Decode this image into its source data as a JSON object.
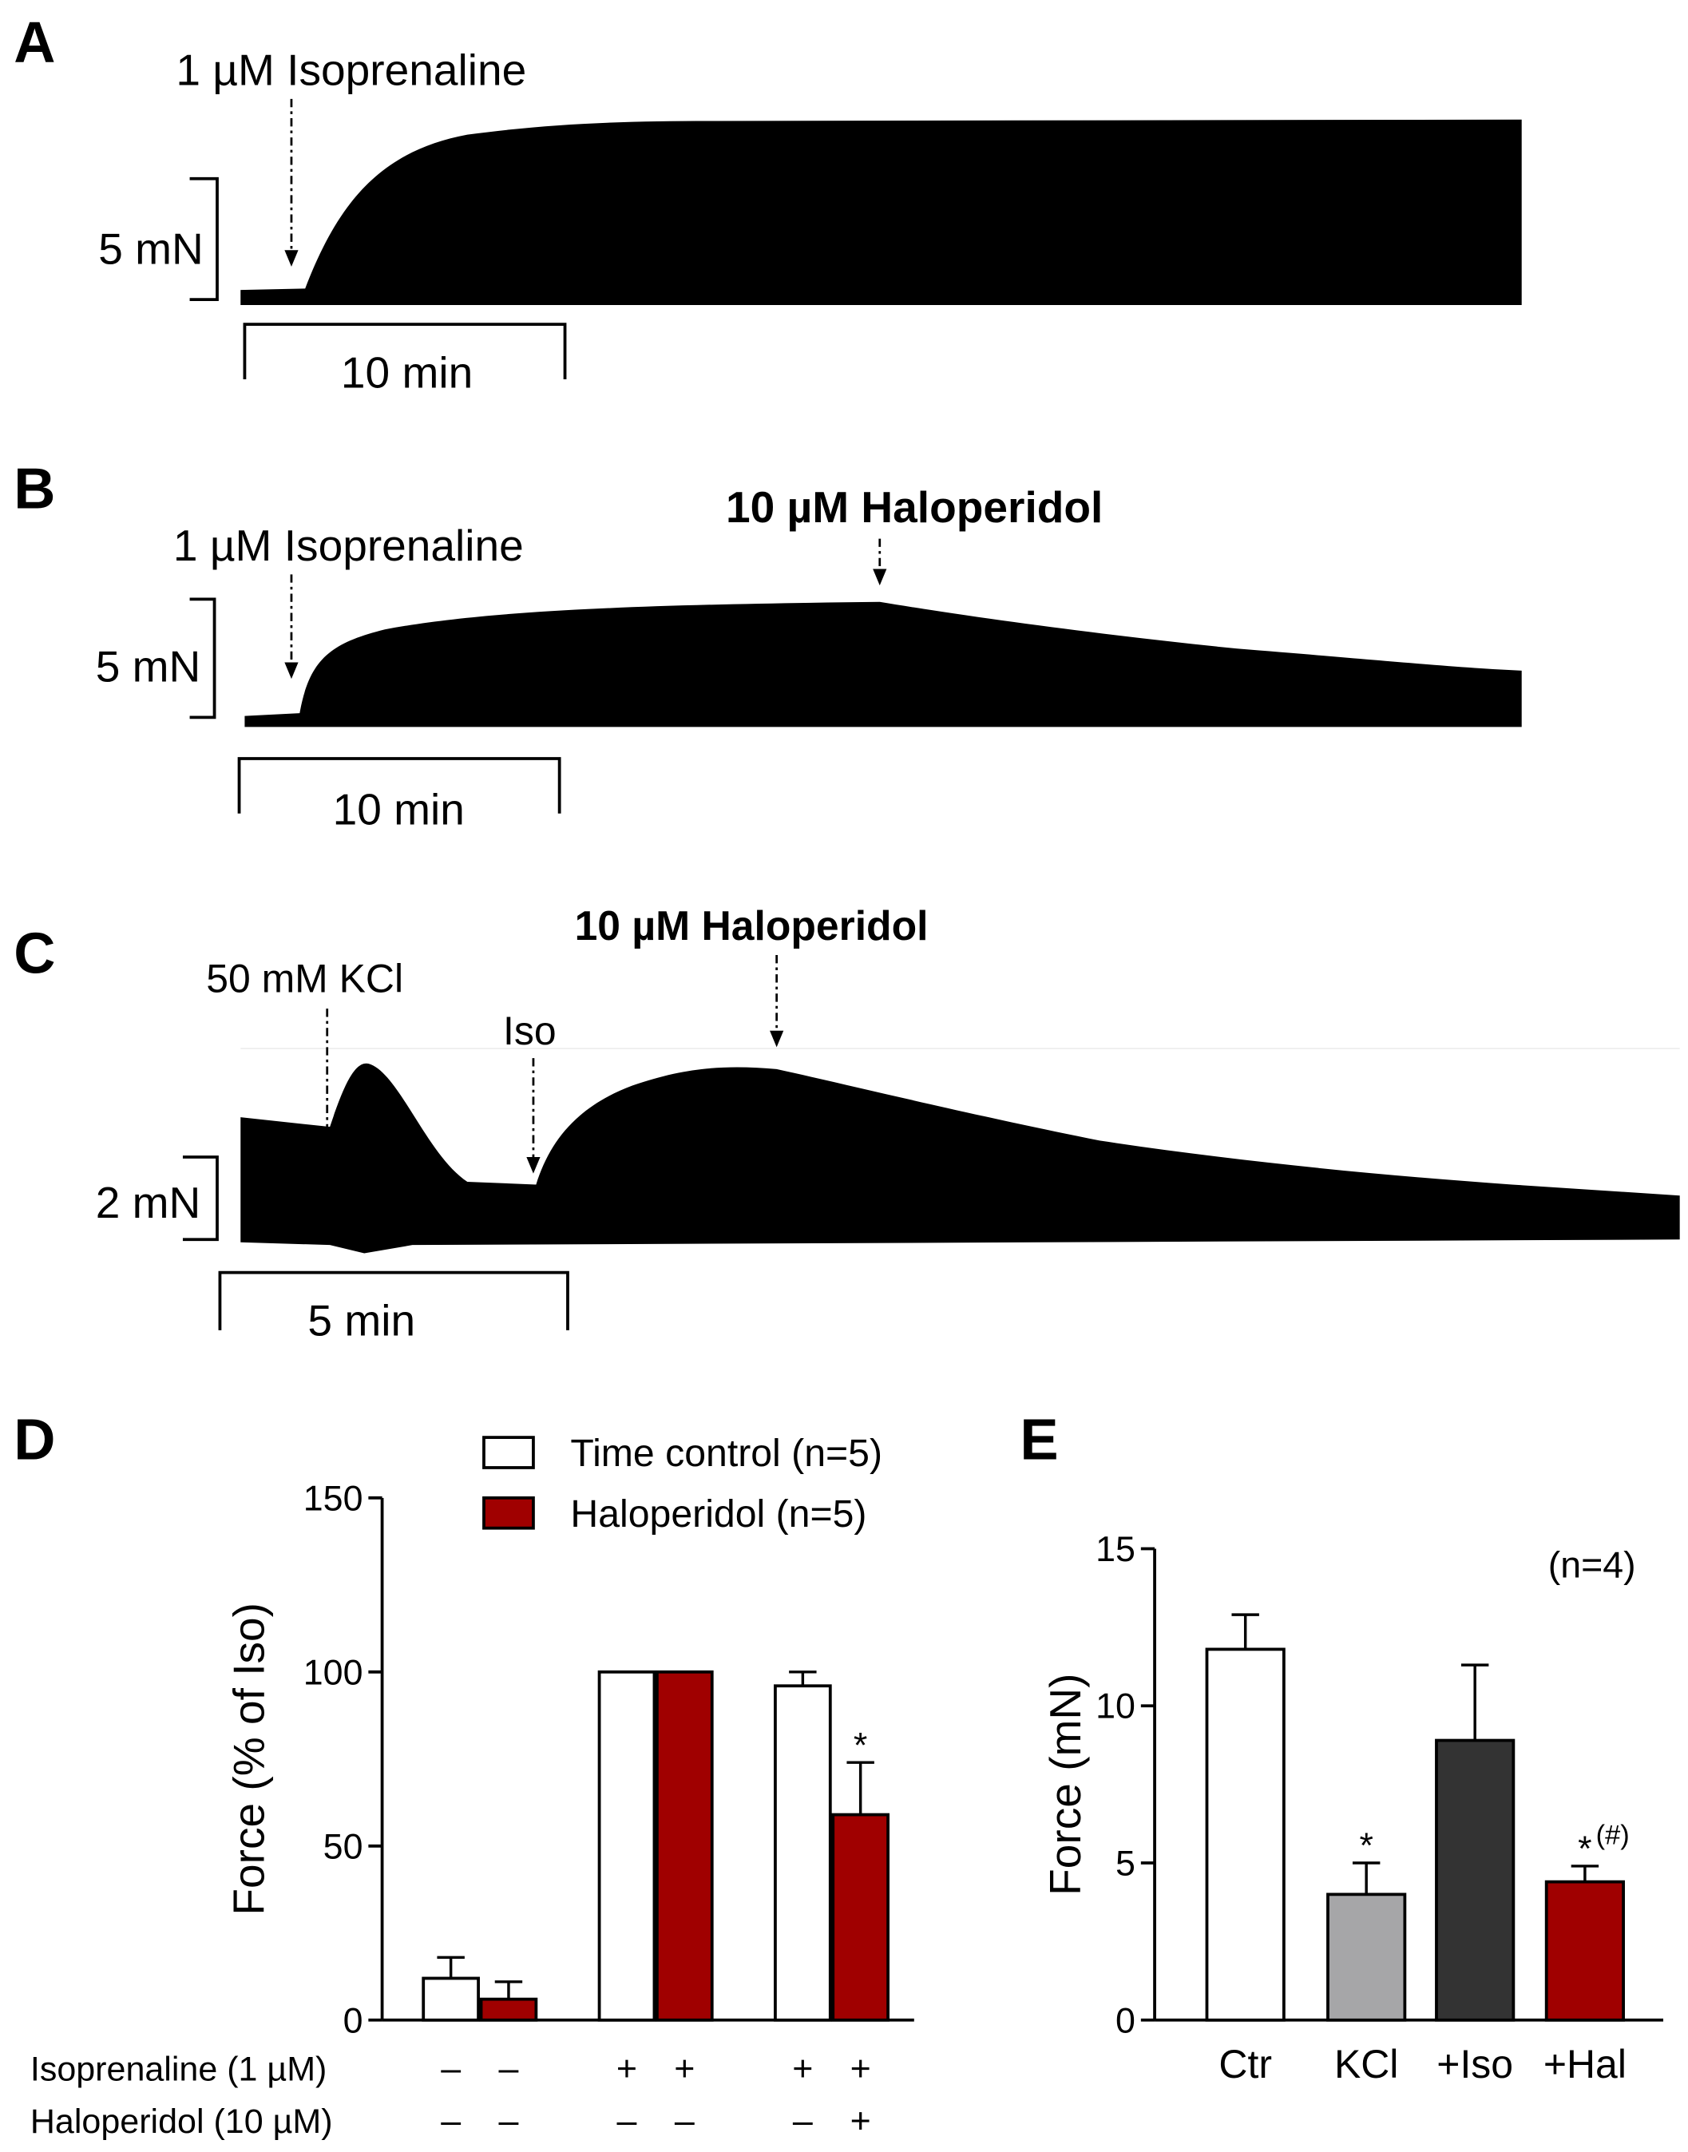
{
  "traces": [
    {
      "label": "A",
      "annotations": [
        "1 µM Isoprenaline"
      ],
      "scale_force": "5 mN",
      "scale_time": "10 min"
    },
    {
      "label": "B",
      "annotations": [
        "1 µM Isoprenaline",
        "10 µM Haloperidol"
      ],
      "scale_force": "5 mN",
      "scale_time": "10 min"
    },
    {
      "label": "C",
      "annotations": [
        "50 mM KCl",
        "Iso",
        "10 µM Haloperidol"
      ],
      "scale_force": "2 mN",
      "scale_time": "5 min"
    }
  ],
  "chart_data": [
    {
      "type": "bar",
      "label": "D",
      "ylabel": "Force (% of Iso)",
      "ylim": [
        0,
        150
      ],
      "yticks": [
        0,
        50,
        100,
        150
      ],
      "series": [
        {
          "name": "Time control (n=5)",
          "color": "#ffffff",
          "values": [
            12,
            100,
            96
          ],
          "errors": [
            6,
            0,
            4
          ],
          "annotations": [
            null,
            null,
            null
          ]
        },
        {
          "name": "Haloperidol (n=5)",
          "color": "#a00000",
          "values": [
            6,
            100,
            59
          ],
          "errors": [
            5,
            0,
            15
          ],
          "annotations": [
            null,
            null,
            "*"
          ]
        }
      ],
      "conditions": [
        {
          "name": "Isoprenaline (1 µM)",
          "signs": [
            "–",
            "–",
            "+",
            "+",
            "+",
            "+"
          ]
        },
        {
          "name": "Haloperidol (10 µM)",
          "signs": [
            "–",
            "–",
            "–",
            "–",
            "–",
            "+"
          ]
        }
      ]
    },
    {
      "type": "bar",
      "label": "E",
      "ylabel": "Force (mN)",
      "ylim": [
        0,
        15
      ],
      "yticks": [
        0,
        5,
        10,
        15
      ],
      "categories": [
        "Ctr",
        "KCl",
        "+Iso",
        "+Hal"
      ],
      "values": [
        11.8,
        4,
        8.9,
        4.4
      ],
      "errors": [
        1.1,
        1,
        2.4,
        0.5
      ],
      "colors": [
        "#ffffff",
        "#a6a6a8",
        "#333333",
        "#a00000"
      ],
      "annotations": [
        null,
        "*",
        null,
        "*"
      ],
      "annotation_superscripts": [
        null,
        null,
        null,
        "(#)"
      ],
      "note": "(n=4)"
    }
  ]
}
